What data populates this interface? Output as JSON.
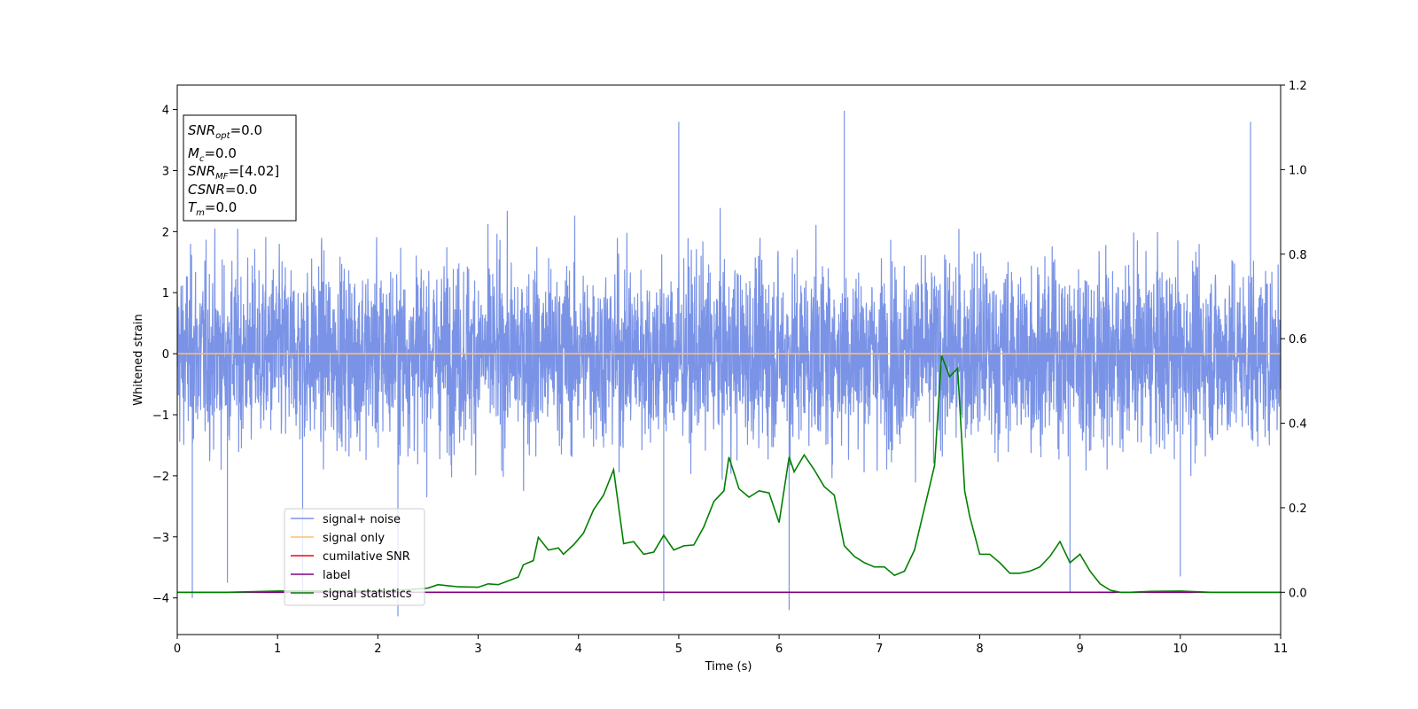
{
  "chart_data": {
    "type": "line",
    "xlabel": "Time (s)",
    "ylabel": "Whitened strain",
    "xlim": [
      0,
      11
    ],
    "ylim": [
      -4.6,
      4.4
    ],
    "ylim_right": [
      -0.1,
      1.2
    ],
    "xticks": [
      "0",
      "1",
      "2",
      "3",
      "4",
      "5",
      "6",
      "7",
      "8",
      "9",
      "10",
      "11"
    ],
    "yticks": [
      "4",
      "3",
      "2",
      "1",
      "0",
      "−1",
      "−2",
      "−3",
      "−4"
    ],
    "yticks_right": [
      "1.2",
      "1.0",
      "0.8",
      "0.6",
      "0.4",
      "0.2",
      "0.0"
    ],
    "grid": false,
    "legend_position": "lower-left",
    "stats_box": {
      "snr_opt": {
        "sym": "SNR",
        "sub": "opt",
        "val": "=0.0"
      },
      "mc": {
        "sym": "M",
        "sub": "c",
        "val": "=0.0"
      },
      "snr_mf": {
        "sym": "SNR",
        "sub": "MF",
        "val": "=[4.02]"
      },
      "csnr": {
        "sym": "CSNR",
        "sub": "",
        "val": "=0.0"
      },
      "tm": {
        "sym": "T",
        "sub": "m",
        "val": "=0.0"
      }
    },
    "series": [
      {
        "name": "signal+ noise",
        "color": "#7a93e6",
        "axis": "left",
        "description_values": "noise, approximately zero-mean, amplitude within [-4.2, 4.0]",
        "notable_peaks": [
          [
            0.15,
            -4.0
          ],
          [
            0.5,
            -3.75
          ],
          [
            1.25,
            -4.0
          ],
          [
            2.2,
            -4.3
          ],
          [
            4.85,
            -4.05
          ],
          [
            5.0,
            3.8
          ],
          [
            6.1,
            -4.2
          ],
          [
            6.65,
            3.98
          ],
          [
            8.9,
            -3.9
          ],
          [
            10.0,
            -3.65
          ],
          [
            10.7,
            3.8
          ]
        ]
      },
      {
        "name": "signal only",
        "color": "#ffbe6e",
        "axis": "left",
        "x": [
          0,
          11
        ],
        "y": [
          0,
          0
        ]
      },
      {
        "name": "cumilative SNR",
        "color": "#ff0000",
        "axis": "left",
        "x": [],
        "y": []
      },
      {
        "name": "label",
        "color": "#800080",
        "axis": "right",
        "x": [
          0,
          11
        ],
        "y": [
          0,
          0
        ]
      },
      {
        "name": "signal statistics",
        "color": "#008000",
        "axis": "right",
        "x": [
          0,
          0.5,
          1.0,
          1.5,
          2.0,
          2.3,
          2.5,
          2.6,
          2.8,
          3.0,
          3.1,
          3.2,
          3.4,
          3.45,
          3.55,
          3.6,
          3.7,
          3.8,
          3.85,
          3.95,
          4.05,
          4.15,
          4.25,
          4.35,
          4.45,
          4.55,
          4.65,
          4.75,
          4.85,
          4.95,
          5.05,
          5.15,
          5.25,
          5.35,
          5.45,
          5.5,
          5.6,
          5.7,
          5.8,
          5.9,
          6.0,
          6.1,
          6.15,
          6.25,
          6.35,
          6.45,
          6.55,
          6.65,
          6.75,
          6.85,
          6.95,
          7.05,
          7.15,
          7.25,
          7.35,
          7.45,
          7.55,
          7.62,
          7.7,
          7.78,
          7.85,
          7.9,
          8.0,
          8.1,
          8.2,
          8.3,
          8.4,
          8.5,
          8.6,
          8.7,
          8.8,
          8.9,
          9.0,
          9.1,
          9.2,
          9.3,
          9.4,
          9.5,
          9.7,
          10.0,
          10.3,
          10.6,
          11.0
        ],
        "y": [
          0,
          0.0,
          0.003,
          0.003,
          0.003,
          0.006,
          0.01,
          0.018,
          0.013,
          0.012,
          0.02,
          0.018,
          0.036,
          0.065,
          0.075,
          0.13,
          0.1,
          0.105,
          0.09,
          0.112,
          0.14,
          0.195,
          0.23,
          0.29,
          0.115,
          0.12,
          0.09,
          0.095,
          0.135,
          0.1,
          0.11,
          0.112,
          0.155,
          0.215,
          0.24,
          0.32,
          0.245,
          0.225,
          0.24,
          0.235,
          0.165,
          0.32,
          0.285,
          0.325,
          0.29,
          0.25,
          0.23,
          0.11,
          0.085,
          0.07,
          0.06,
          0.06,
          0.04,
          0.05,
          0.1,
          0.2,
          0.3,
          0.56,
          0.51,
          0.53,
          0.24,
          0.18,
          0.09,
          0.09,
          0.07,
          0.045,
          0.045,
          0.05,
          0.06,
          0.085,
          0.12,
          0.07,
          0.09,
          0.05,
          0.02,
          0.005,
          0.0,
          0.0,
          0.002,
          0.003,
          0.0,
          0.0,
          0.0
        ]
      }
    ]
  }
}
